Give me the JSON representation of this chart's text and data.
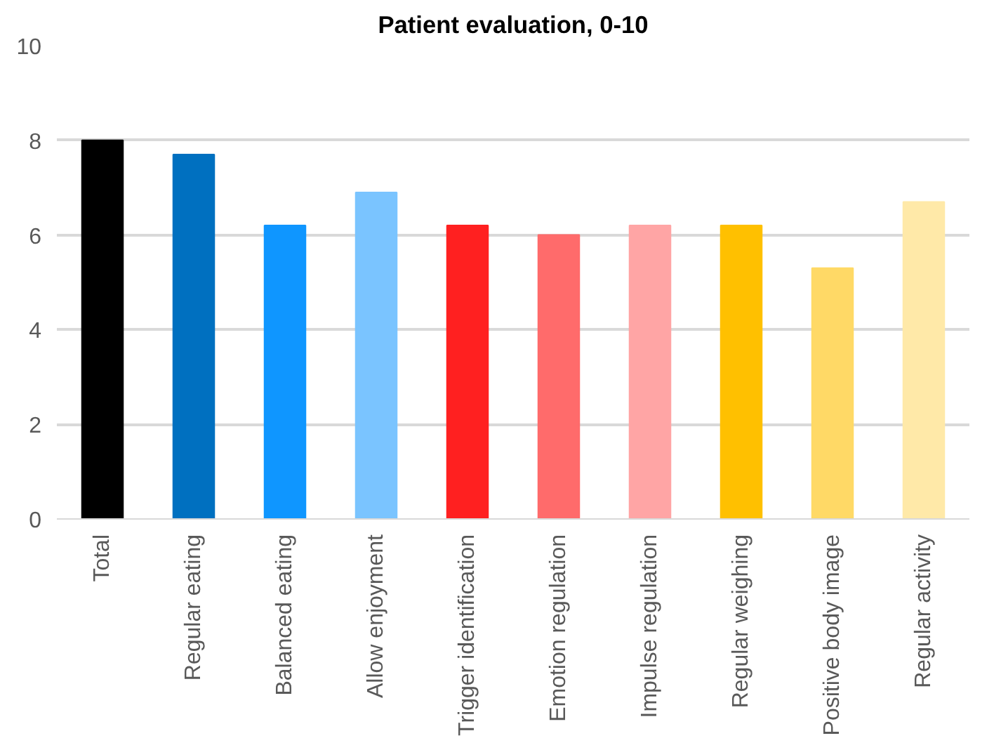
{
  "chart_data": {
    "type": "bar",
    "title": "Patient evaluation, 0-10",
    "categories": [
      "Total",
      "Regular eating",
      "Balanced eating",
      "Allow enjoyment",
      "Trigger identification",
      "Emotion regulation",
      "Impulse regulation",
      "Regular weighing",
      "Positive body image",
      "Regular activity"
    ],
    "values": [
      8.0,
      7.7,
      6.2,
      6.9,
      6.2,
      6.0,
      6.2,
      6.2,
      5.3,
      6.7
    ],
    "colors": [
      "#000000",
      "#0070c0",
      "#0f96ff",
      "#7ac4ff",
      "#ff2020",
      "#ff6b6b",
      "#ffa5a5",
      "#ffc000",
      "#ffd966",
      "#ffe9a8"
    ],
    "ylim": [
      0,
      10
    ],
    "yticks": [
      0,
      2,
      4,
      6,
      8,
      10
    ],
    "grid": "y"
  }
}
